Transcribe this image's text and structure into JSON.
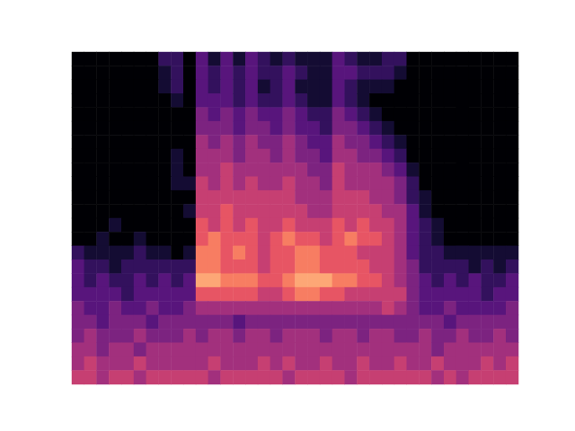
{
  "chart_data": {
    "type": "heatmap",
    "tick_labels": false,
    "grid": false,
    "zlim": [
      0,
      11
    ],
    "cells": [
      [
        0,
        0,
        0,
        0,
        0,
        0,
        0,
        2,
        2,
        0,
        3,
        1,
        3,
        1,
        3,
        2,
        1,
        2,
        1,
        1,
        1,
        3,
        2,
        1,
        1,
        2,
        2,
        0,
        0,
        0,
        0,
        0,
        0,
        0,
        0,
        0
      ],
      [
        0,
        0,
        0,
        0,
        0,
        0,
        0,
        1,
        2,
        0,
        3,
        2,
        3,
        2,
        3,
        2,
        2,
        3,
        2,
        1,
        1,
        3,
        3,
        2,
        2,
        2,
        1,
        0,
        0,
        0,
        0,
        0,
        0,
        0,
        0,
        0
      ],
      [
        0,
        0,
        0,
        0,
        0,
        0,
        0,
        1,
        2,
        0,
        3,
        2,
        3,
        2,
        3,
        1,
        2,
        3,
        1,
        1,
        1,
        3,
        2,
        1,
        1,
        1,
        0,
        0,
        0,
        0,
        0,
        0,
        0,
        0,
        0,
        0
      ],
      [
        0,
        0,
        0,
        0,
        0,
        0,
        0,
        0,
        1,
        0,
        3,
        3,
        3,
        2,
        3,
        2,
        2,
        3,
        2,
        1,
        1,
        3,
        2,
        1,
        0,
        0,
        0,
        0,
        0,
        0,
        0,
        0,
        0,
        0,
        0,
        0
      ],
      [
        0,
        0,
        0,
        0,
        0,
        0,
        0,
        0,
        0,
        0,
        4,
        3,
        4,
        3,
        4,
        3,
        3,
        4,
        3,
        2,
        2,
        4,
        3,
        2,
        1,
        0,
        0,
        0,
        0,
        0,
        0,
        0,
        0,
        0,
        0,
        0
      ],
      [
        0,
        0,
        0,
        0,
        0,
        0,
        0,
        0,
        0,
        0,
        4,
        4,
        4,
        3,
        4,
        4,
        3,
        4,
        3,
        3,
        2,
        4,
        4,
        3,
        2,
        1,
        0,
        0,
        0,
        0,
        0,
        0,
        0,
        0,
        0,
        0
      ],
      [
        0,
        0,
        0,
        0,
        0,
        0,
        0,
        0,
        0,
        0,
        5,
        4,
        5,
        4,
        5,
        4,
        4,
        5,
        4,
        3,
        3,
        5,
        4,
        4,
        3,
        2,
        1,
        0,
        0,
        0,
        0,
        0,
        0,
        0,
        0,
        0
      ],
      [
        0,
        0,
        0,
        0,
        0,
        0,
        0,
        0,
        1,
        0,
        5,
        5,
        5,
        4,
        5,
        5,
        4,
        5,
        4,
        4,
        3,
        5,
        5,
        4,
        4,
        3,
        2,
        0,
        0,
        0,
        0,
        0,
        0,
        0,
        0,
        0
      ],
      [
        0,
        0,
        0,
        0,
        0,
        0,
        0,
        0,
        1,
        0,
        5,
        5,
        6,
        5,
        5,
        5,
        5,
        5,
        5,
        4,
        4,
        6,
        5,
        5,
        5,
        4,
        3,
        1,
        0,
        0,
        0,
        0,
        0,
        0,
        0,
        0
      ],
      [
        0,
        0,
        0,
        0,
        0,
        0,
        0,
        0,
        1,
        1,
        6,
        5,
        6,
        5,
        6,
        5,
        5,
        6,
        5,
        5,
        4,
        6,
        5,
        5,
        5,
        5,
        4,
        2,
        0,
        0,
        0,
        0,
        0,
        0,
        0,
        0
      ],
      [
        0,
        0,
        0,
        0,
        0,
        0,
        0,
        0,
        0,
        0,
        6,
        6,
        6,
        6,
        6,
        6,
        6,
        6,
        5,
        5,
        5,
        6,
        6,
        6,
        5,
        5,
        4,
        2,
        1,
        0,
        0,
        0,
        0,
        0,
        0,
        0
      ],
      [
        0,
        0,
        0,
        0,
        0,
        0,
        0,
        0,
        0,
        1,
        6,
        6,
        7,
        6,
        6,
        6,
        6,
        6,
        6,
        5,
        5,
        6,
        6,
        6,
        6,
        5,
        5,
        3,
        1,
        0,
        0,
        0,
        0,
        0,
        0,
        0
      ],
      [
        0,
        0,
        0,
        1,
        0,
        0,
        0,
        0,
        0,
        0,
        7,
        6,
        7,
        6,
        7,
        6,
        6,
        7,
        6,
        6,
        6,
        7,
        6,
        7,
        6,
        6,
        5,
        3,
        2,
        1,
        0,
        0,
        0,
        0,
        0,
        0
      ],
      [
        0,
        0,
        1,
        0,
        0,
        1,
        0,
        0,
        0,
        0,
        7,
        8,
        7,
        7,
        7,
        6,
        7,
        8,
        7,
        7,
        6,
        7,
        8,
        7,
        7,
        6,
        5,
        3,
        2,
        1,
        0,
        0,
        0,
        0,
        0,
        0
      ],
      [
        2,
        1,
        1,
        1,
        1,
        2,
        1,
        1,
        0,
        1,
        8,
        8,
        7,
        8,
        7,
        6,
        7,
        7,
        8,
        8,
        7,
        7,
        7,
        6,
        6,
        6,
        5,
        3,
        2,
        2,
        1,
        1,
        1,
        1,
        1,
        1
      ],
      [
        3,
        2,
        2,
        1,
        2,
        2,
        2,
        2,
        2,
        2,
        8,
        8,
        7,
        7,
        7,
        6,
        7,
        7,
        8,
        8,
        7,
        7,
        7,
        7,
        6,
        6,
        5,
        4,
        2,
        2,
        2,
        2,
        1,
        2,
        1,
        2
      ],
      [
        3,
        2,
        3,
        2,
        2,
        3,
        2,
        3,
        2,
        3,
        9,
        9,
        8,
        8,
        8,
        7,
        7,
        8,
        9,
        9,
        9,
        8,
        8,
        7,
        7,
        6,
        5,
        4,
        3,
        2,
        3,
        2,
        3,
        2,
        2,
        3
      ],
      [
        3,
        3,
        3,
        3,
        2,
        3,
        3,
        3,
        3,
        3,
        7,
        7,
        7,
        7,
        7,
        6,
        6,
        7,
        8,
        8,
        7,
        7,
        6,
        6,
        6,
        6,
        6,
        4,
        3,
        3,
        3,
        3,
        3,
        2,
        3,
        3
      ],
      [
        4,
        3,
        3,
        4,
        3,
        3,
        4,
        3,
        3,
        4,
        5,
        5,
        5,
        5,
        5,
        5,
        5,
        5,
        5,
        5,
        5,
        5,
        5,
        5,
        5,
        6,
        5,
        4,
        3,
        3,
        4,
        3,
        3,
        3,
        3,
        4
      ],
      [
        4,
        4,
        3,
        4,
        4,
        4,
        3,
        4,
        4,
        4,
        4,
        4,
        4,
        3,
        4,
        4,
        4,
        4,
        4,
        4,
        4,
        4,
        4,
        4,
        4,
        4,
        4,
        4,
        4,
        4,
        3,
        4,
        4,
        4,
        4,
        4
      ],
      [
        4,
        5,
        4,
        4,
        4,
        5,
        4,
        4,
        4,
        5,
        4,
        5,
        5,
        4,
        5,
        5,
        4,
        5,
        5,
        5,
        4,
        5,
        5,
        4,
        5,
        5,
        4,
        4,
        5,
        4,
        4,
        5,
        4,
        4,
        5,
        4
      ],
      [
        5,
        5,
        4,
        5,
        5,
        4,
        5,
        5,
        5,
        5,
        5,
        5,
        5,
        5,
        5,
        5,
        5,
        5,
        5,
        5,
        5,
        5,
        5,
        5,
        5,
        5,
        5,
        5,
        5,
        4,
        5,
        5,
        5,
        5,
        5,
        5
      ],
      [
        5,
        6,
        5,
        5,
        5,
        6,
        5,
        5,
        5,
        5,
        5,
        6,
        5,
        5,
        5,
        6,
        5,
        6,
        5,
        5,
        6,
        5,
        5,
        6,
        5,
        5,
        6,
        5,
        5,
        6,
        5,
        5,
        5,
        6,
        5,
        6
      ],
      [
        6,
        6,
        5,
        6,
        6,
        5,
        6,
        6,
        6,
        6,
        6,
        5,
        6,
        6,
        6,
        6,
        6,
        5,
        6,
        6,
        6,
        6,
        5,
        6,
        6,
        6,
        6,
        6,
        6,
        5,
        6,
        5,
        6,
        6,
        6,
        6
      ]
    ]
  }
}
